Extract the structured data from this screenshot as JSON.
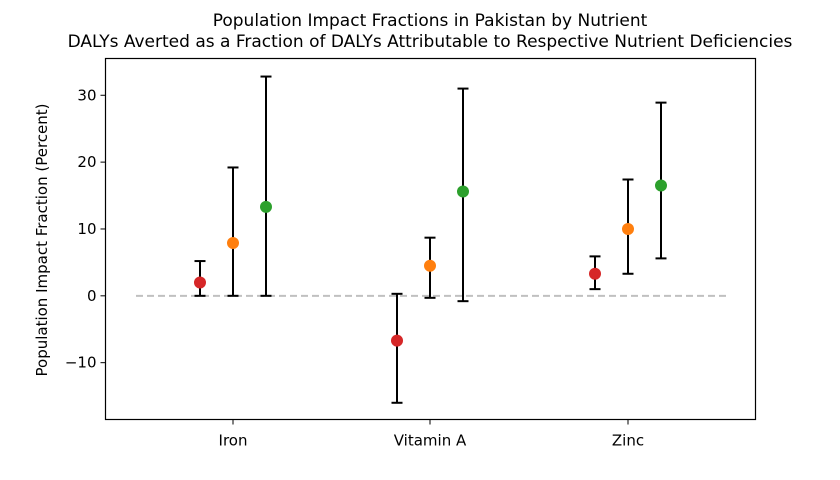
{
  "chart_data": {
    "type": "scatter",
    "title": "Population Impact Fractions in Pakistan by Nutrient",
    "subtitle": "DALYs Averted as a Fraction of DALYs Attributable to Respective Nutrient Deficiencies",
    "xlabel": "",
    "ylabel": "Population Impact Fraction (Percent)",
    "categories": [
      "Iron",
      "Vitamin A",
      "Zinc"
    ],
    "ylim": [
      -18.5,
      35.5
    ],
    "yticks": [
      -10,
      0,
      10,
      20,
      30
    ],
    "ytick_labels": [
      "−10",
      "0",
      "10",
      "20",
      "30"
    ],
    "grid": false,
    "reference_line": {
      "y": 0,
      "style": "dashed",
      "color": "#c0c0c0"
    },
    "series": [
      {
        "color": "#d62728",
        "offset": -1,
        "points": [
          {
            "category": "Iron",
            "y": 2.0,
            "lower": 0.0,
            "upper": 5.2
          },
          {
            "category": "Vitamin A",
            "y": -6.7,
            "lower": -16.0,
            "upper": 0.3
          },
          {
            "category": "Zinc",
            "y": 3.3,
            "lower": 1.0,
            "upper": 5.9
          }
        ]
      },
      {
        "color": "#ff7f0e",
        "offset": 0,
        "points": [
          {
            "category": "Iron",
            "y": 7.9,
            "lower": 0.0,
            "upper": 19.2
          },
          {
            "category": "Vitamin A",
            "y": 4.5,
            "lower": -0.3,
            "upper": 8.7
          },
          {
            "category": "Zinc",
            "y": 10.0,
            "lower": 3.3,
            "upper": 17.4
          }
        ]
      },
      {
        "color": "#2ca02c",
        "offset": 1,
        "points": [
          {
            "category": "Iron",
            "y": 13.3,
            "lower": 0.0,
            "upper": 32.8
          },
          {
            "category": "Vitamin A",
            "y": 15.6,
            "lower": -0.8,
            "upper": 31.0
          },
          {
            "category": "Zinc",
            "y": 16.5,
            "lower": 5.6,
            "upper": 28.9
          }
        ]
      }
    ]
  }
}
